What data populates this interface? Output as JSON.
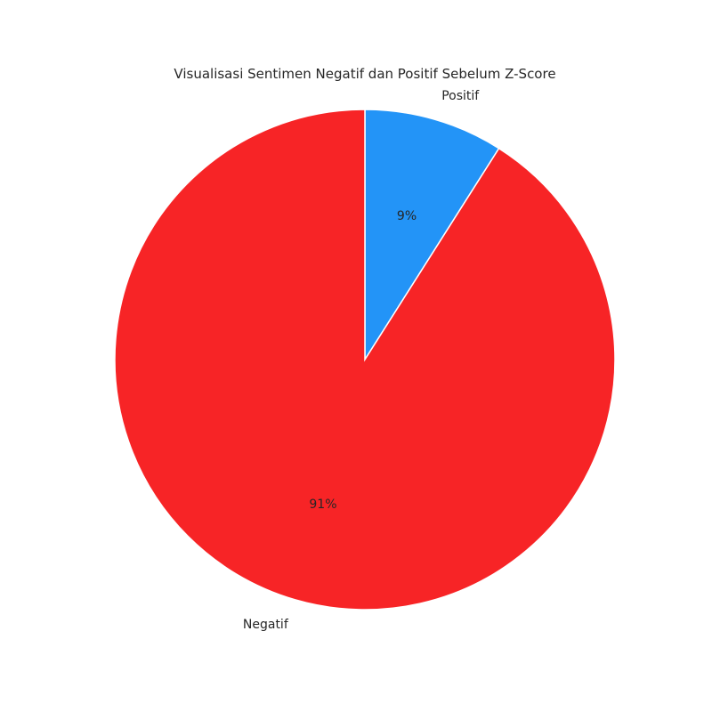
{
  "chart_data": {
    "type": "pie",
    "title": "Visualisasi Sentimen Negatif dan Positif Sebelum Z-Score",
    "categories": [
      "Positif",
      "Negatif"
    ],
    "values": [
      9,
      91
    ],
    "percent_labels": [
      "9%",
      "91%"
    ],
    "colors": [
      "#2394f7",
      "#f72426"
    ]
  }
}
